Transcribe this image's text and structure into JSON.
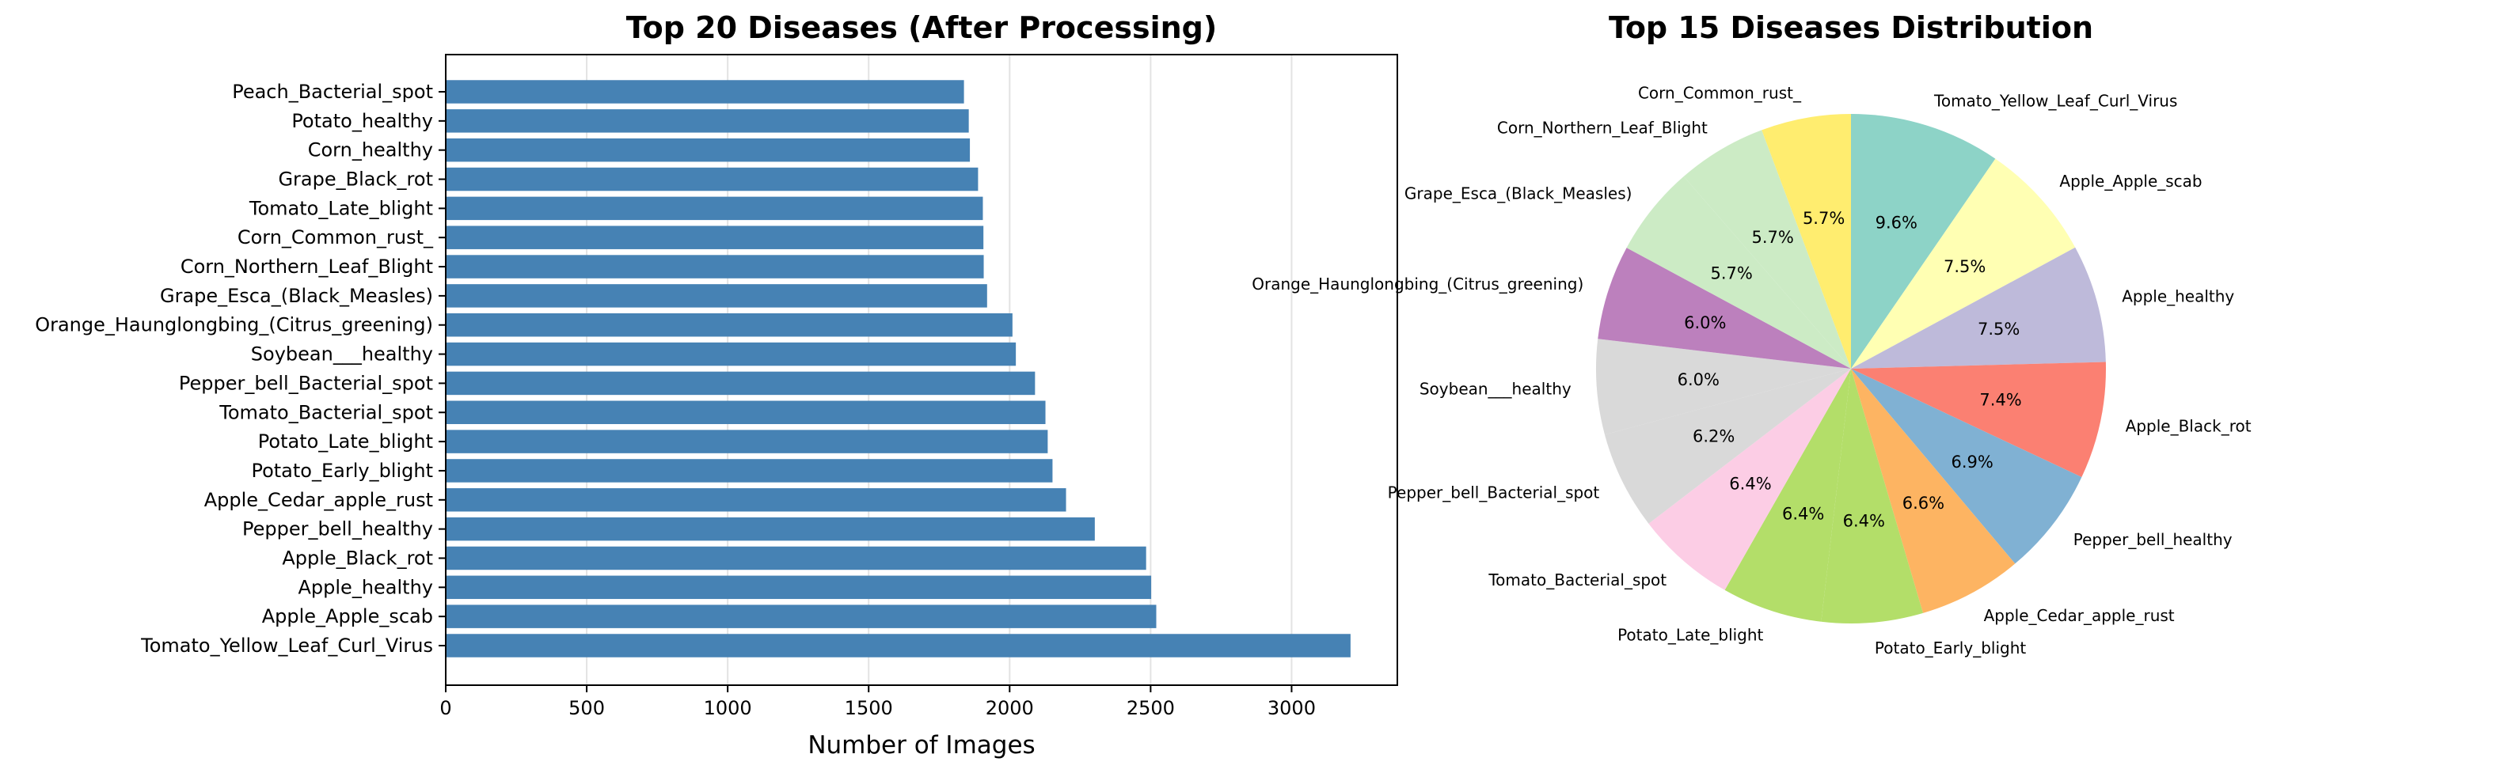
{
  "chart_data": [
    {
      "type": "bar",
      "orientation": "horizontal",
      "title": "Top 20 Diseases (After Processing)",
      "xlabel": "Number of Images",
      "ylabel": "",
      "xlim": [
        0,
        3375
      ],
      "xticks": [
        0,
        500,
        1000,
        1500,
        2000,
        2500,
        3000
      ],
      "grid": "x",
      "color": "#4682b4",
      "categories": [
        "Tomato_Yellow_Leaf_Curl_Virus",
        "Apple_Apple_scab",
        "Apple_healthy",
        "Apple_Black_rot",
        "Pepper_bell_healthy",
        "Apple_Cedar_apple_rust",
        "Potato_Early_blight",
        "Potato_Late_blight",
        "Tomato_Bacterial_spot",
        "Pepper_bell_Bacterial_spot",
        "Soybean___healthy",
        "Orange_Haunglongbing_(Citrus_greening)",
        "Grape_Esca_(Black_Measles)",
        "Corn_Northern_Leaf_Blight",
        "Corn_Common_rust_",
        "Tomato_Late_blight",
        "Grape_Black_rot",
        "Corn_healthy",
        "Potato_healthy",
        "Peach_Bacterial_spot"
      ],
      "values": [
        3209,
        2520,
        2502,
        2484,
        2302,
        2200,
        2152,
        2135,
        2127,
        2090,
        2022,
        2010,
        1920,
        1908,
        1907,
        1905,
        1888,
        1859,
        1855,
        1838
      ]
    },
    {
      "type": "pie",
      "title": "Top 15 Diseases Distribution",
      "start_angle_deg": 90,
      "direction": "clockwise",
      "categories": [
        "Tomato_Yellow_Leaf_Curl_Virus",
        "Apple_Apple_scab",
        "Apple_healthy",
        "Apple_Black_rot",
        "Pepper_bell_healthy",
        "Apple_Cedar_apple_rust",
        "Potato_Early_blight",
        "Potato_Late_blight",
        "Tomato_Bacterial_spot",
        "Pepper_bell_Bacterial_spot",
        "Soybean___healthy",
        "Orange_Haunglongbing_(Citrus_greening)",
        "Grape_Esca_(Black_Measles)",
        "Corn_Northern_Leaf_Blight",
        "Corn_Common_rust_"
      ],
      "values": [
        3209,
        2520,
        2502,
        2484,
        2302,
        2200,
        2152,
        2135,
        2127,
        2090,
        2022,
        2010,
        1920,
        1908,
        1907
      ],
      "percent_labels": [
        "9.6%",
        "7.5%",
        "7.5%",
        "7.4%",
        "6.9%",
        "6.6%",
        "6.4%",
        "6.4%",
        "6.4%",
        "6.2%",
        "6.0%",
        "6.0%",
        "5.7%",
        "5.7%",
        "5.7%"
      ],
      "colors": [
        "#8dd3c7",
        "#ffffb3",
        "#bebada",
        "#fb8072",
        "#80b1d3",
        "#fdb462",
        "#b3de69",
        "#b3de69",
        "#fccde5",
        "#d9d9d9",
        "#d9d9d9",
        "#bc80bd",
        "#ccebc5",
        "#ccebc5",
        "#ffed6f"
      ]
    }
  ]
}
